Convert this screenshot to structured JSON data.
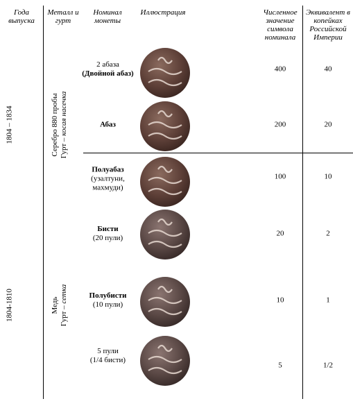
{
  "table": {
    "headers": [
      "Года выпуска",
      "Металл и гурт",
      "Номинал монеты",
      "Иллюстрация",
      "Численное значение символа номинала",
      "Эквивалент в копейках Российской Империи"
    ],
    "periods": [
      "1804 – 1834",
      "1804-1810"
    ],
    "metals": [
      {
        "metal": "Серебро 880 пробы",
        "edge_label": "Гурт –",
        "edge": "косая насечка"
      },
      {
        "metal": "Медь",
        "edge_label": "Гурт –",
        "edge": "сетка"
      }
    ],
    "rows": [
      {
        "lines": [
          "2 абаза",
          "(Двойной абаз)"
        ],
        "bold": [
          false,
          true
        ],
        "symbol": "400",
        "kopecks": "40"
      },
      {
        "lines": [
          "Абаз"
        ],
        "bold": [
          true
        ],
        "symbol": "200",
        "kopecks": "20"
      },
      {
        "lines": [
          "Полуабаз",
          "(узалтуни, махмуди)"
        ],
        "bold": [
          true,
          false
        ],
        "symbol": "100",
        "kopecks": "10"
      },
      {
        "lines": [
          "Бисти",
          "(20 пули)"
        ],
        "bold": [
          true,
          false
        ],
        "symbol": "20",
        "kopecks": "2"
      },
      {
        "lines": [
          "Полубисти",
          "(10 пули)"
        ],
        "bold": [
          true,
          false
        ],
        "symbol": "10",
        "kopecks": "1"
      },
      {
        "lines": [
          "5 пули",
          "(1/4 бисти)"
        ],
        "bold": [
          false,
          false
        ],
        "symbol": "5",
        "kopecks": "1/2"
      }
    ]
  }
}
